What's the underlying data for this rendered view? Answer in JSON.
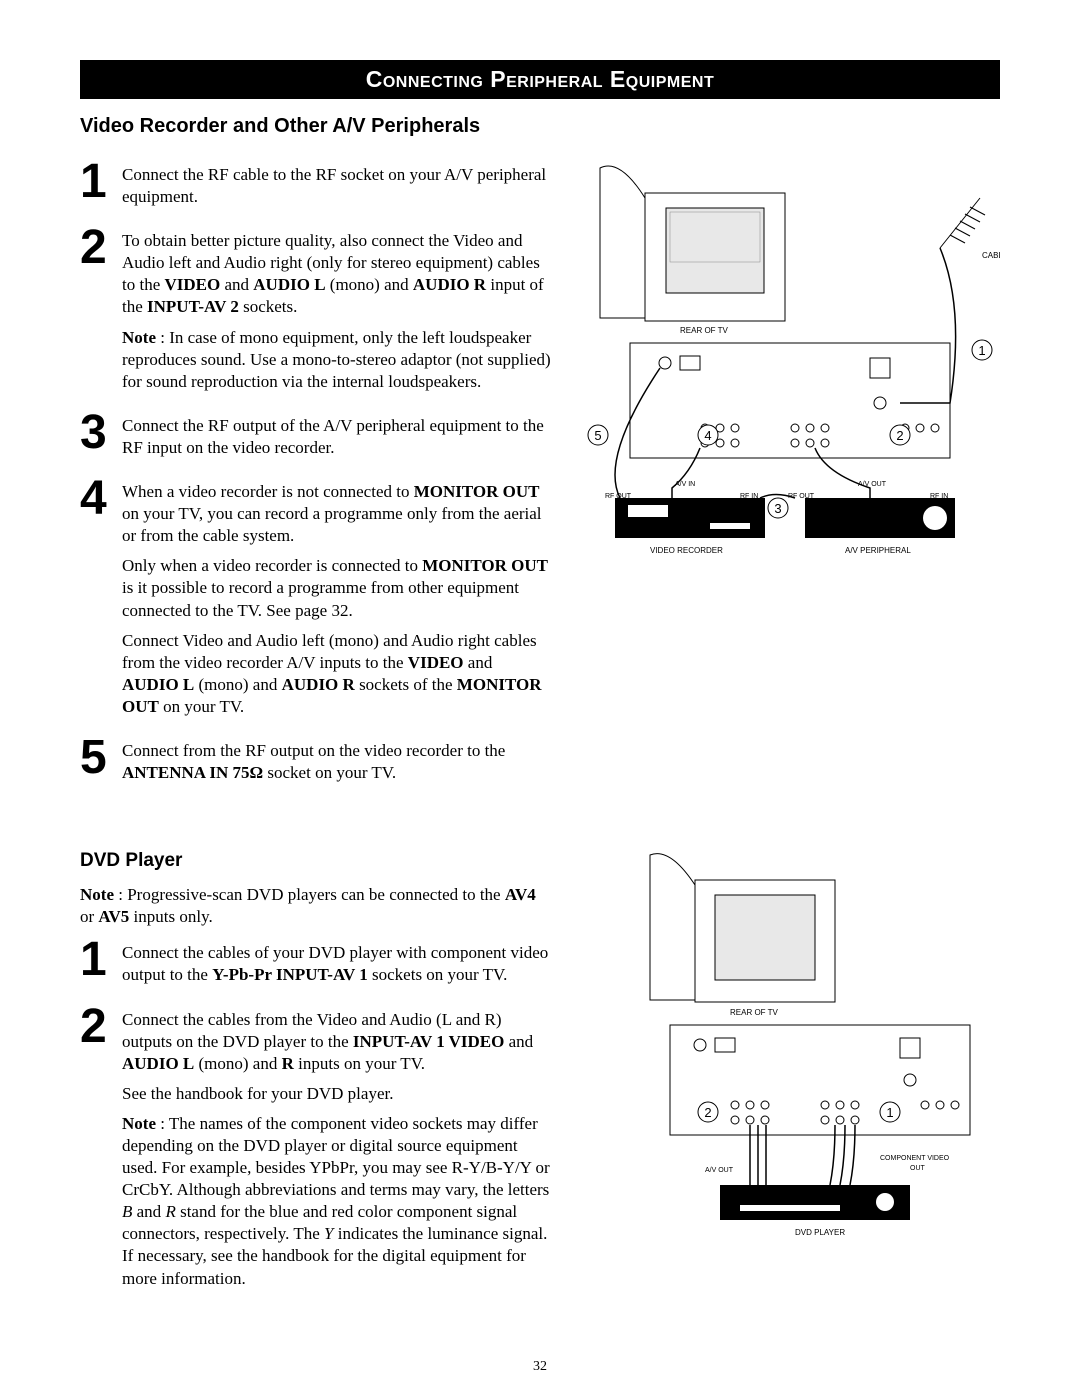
{
  "header": "Connecting Peripheral Equipment",
  "section1": {
    "title": "Video Recorder and Other A/V Peripherals",
    "steps": {
      "1": {
        "num": "1",
        "text": "Connect the RF cable to the RF socket on your A/V peripheral equipment."
      },
      "2": {
        "num": "2",
        "html": "To obtain better picture quality, also connect the Video and Audio left and Audio right (only for stereo equipment) cables to the <b>VIDEO</b> and <b>AUDIO L</b> (mono) and <b>AUDIO R</b> input of the <b>INPUT-AV 2</b> sockets."
      },
      "note2": "<b>Note</b> : In case of mono equipment, only the left loudspeaker reproduces sound. Use a mono-to-stereo adaptor (not supplied) for sound reproduction via the internal loudspeakers.",
      "3": {
        "num": "3",
        "text": "Connect the RF output of the A/V peripheral equipment to the RF input on the video recorder."
      },
      "4": {
        "num": "4",
        "html": "When a video recorder is not connected to <b>MONITOR OUT</b> on your TV, you can record a programme only from the aerial or from the cable system."
      },
      "note4a": "Only when a video recorder is connected to <b>MONITOR OUT</b> is it possible to record a programme from other equipment connected to the TV. See page 32.",
      "note4b": "Connect Video and Audio left (mono) and Audio right cables from the video recorder A/V inputs to the <b>VIDEO</b> and <b>AUDIO L</b> (mono) and <b>AUDIO R</b> sockets of the <b>MONITOR OUT</b> on your TV.",
      "5": {
        "num": "5",
        "html": "Connect from the RF output on the video recorder to the <b>ANTENNA IN 75Ω</b> socket on your TV."
      }
    }
  },
  "section2": {
    "title": "DVD Player",
    "intro": "<b>Note</b> : Progressive-scan DVD players can be connected to the <b>AV4</b> or <b>AV5</b> inputs only.",
    "steps": {
      "1": {
        "num": "1",
        "html": "Connect the cables of your DVD player with component video output to the <b>Y-Pb-Pr INPUT-AV 1</b> sockets on your TV."
      },
      "2": {
        "num": "2",
        "html": "Connect the cables from the Video and Audio (L and R) outputs on the DVD player to the <b>INPUT-AV 1 VIDEO</b> and <b>AUDIO L</b> (mono) and <b>R</b> inputs on your TV."
      },
      "afterA": "See the handbook for your DVD player.",
      "afterB": "<b>Note</b> : The names of the component video sockets may differ depending on the DVD player or digital source equipment used. For example, besides YPbPr, you may see R-Y/B-Y/Y or CrCbY. Although abbreviations and terms may vary, the letters <i>B</i> and <i>R</i> stand for the blue and red color component signal connectors, respectively. The <i>Y</i> indicates the luminance signal. If necessary, see the handbook for the digital equipment for more information."
    }
  },
  "pageNumber": "32",
  "diagram1": {
    "labels": {
      "cable": "CABLE",
      "rearOfTv": "REAR OF TV",
      "avIn": "A/V IN",
      "avOut": "A/V OUT",
      "rfOut": "RF OUT",
      "rfIn": "RF IN",
      "videoRecorder": "VIDEO RECORDER",
      "avPeripheral": "A/V PERIPHERAL"
    },
    "callouts": [
      "1",
      "2",
      "3",
      "4",
      "5"
    ],
    "colors": {
      "stroke": "#000000",
      "panelFill": "#ffffff",
      "shadeFill": "#e8e8e8"
    }
  },
  "diagram2": {
    "labels": {
      "rearOfTv": "REAR OF TV",
      "avOut": "A/V OUT",
      "componentVideoOut": "COMPONENT VIDEO\nOUT",
      "dvdPlayer": "DVD PLAYER"
    },
    "callouts": [
      "1",
      "2"
    ],
    "colors": {
      "stroke": "#000000",
      "panelFill": "#ffffff"
    }
  }
}
